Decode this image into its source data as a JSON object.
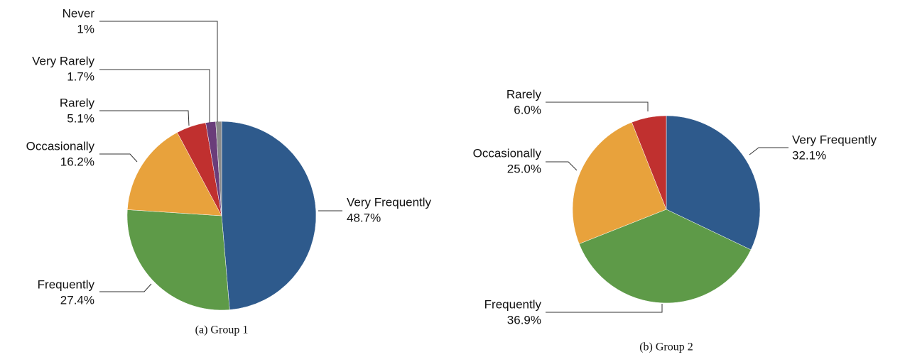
{
  "chart_data": [
    {
      "type": "pie",
      "title": "(a) Group 1",
      "categories": [
        "Very Frequently",
        "Frequently",
        "Occasionally",
        "Rarely",
        "Very Rarely",
        "Never"
      ],
      "values": [
        48.7,
        27.4,
        16.2,
        5.1,
        1.7,
        1
      ],
      "value_labels": [
        "48.7%",
        "27.4%",
        "16.2%",
        "5.1%",
        "1.7%",
        "1%"
      ],
      "colors": [
        "#2e5a8c",
        "#5e9a48",
        "#e8a23c",
        "#c0302f",
        "#6a3d7a",
        "#8a8a8a"
      ]
    },
    {
      "type": "pie",
      "title": "(b) Group 2",
      "categories": [
        "Very Frequently",
        "Frequently",
        "Occasionally",
        "Rarely"
      ],
      "values": [
        32.1,
        36.9,
        25,
        6
      ],
      "value_labels": [
        "32.1%",
        "36.9%",
        "25.0%",
        "6.0%"
      ],
      "colors": [
        "#2e5a8c",
        "#5e9a48",
        "#e8a23c",
        "#c0302f"
      ]
    }
  ]
}
